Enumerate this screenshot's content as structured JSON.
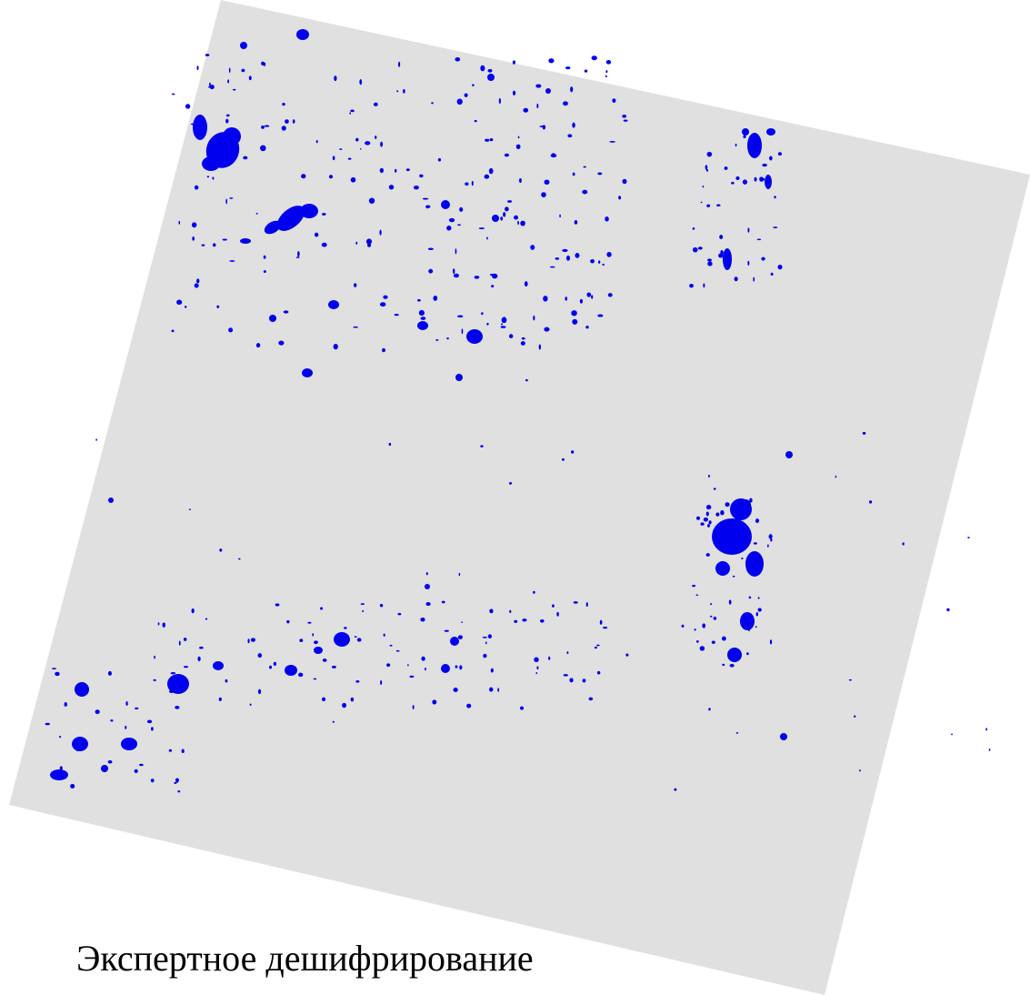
{
  "caption": "Экспертное дешифрирование"
}
